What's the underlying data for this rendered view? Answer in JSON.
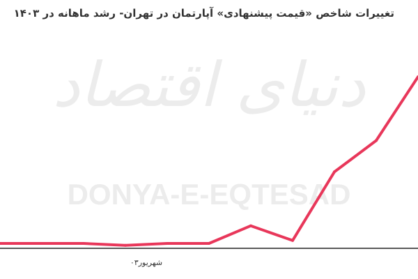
{
  "chart_data": {
    "type": "line",
    "title": "تغییرات شاخص «قیمت پیشنهادی» آپارتمان در تهران- رشد ماهانه در ۱۴۰۳",
    "xlabel": "",
    "ylabel": "",
    "x_tick_labels": [
      {
        "label": "شهریور۰۳",
        "index": 3.5
      }
    ],
    "line_color": "#e8375a",
    "axis_color": "#222222",
    "grid": false,
    "series": [
      {
        "values": [
          0.5,
          0.5,
          0.5,
          0.3,
          0.5,
          0.5,
          2.3,
          0.8,
          7.8,
          11.0,
          17.5
        ]
      }
    ],
    "ylim": [
      0,
      21
    ]
  },
  "watermark": {
    "persian": "دنیای اقتصاد",
    "latin": "DONYA-E-EQTESAD"
  }
}
